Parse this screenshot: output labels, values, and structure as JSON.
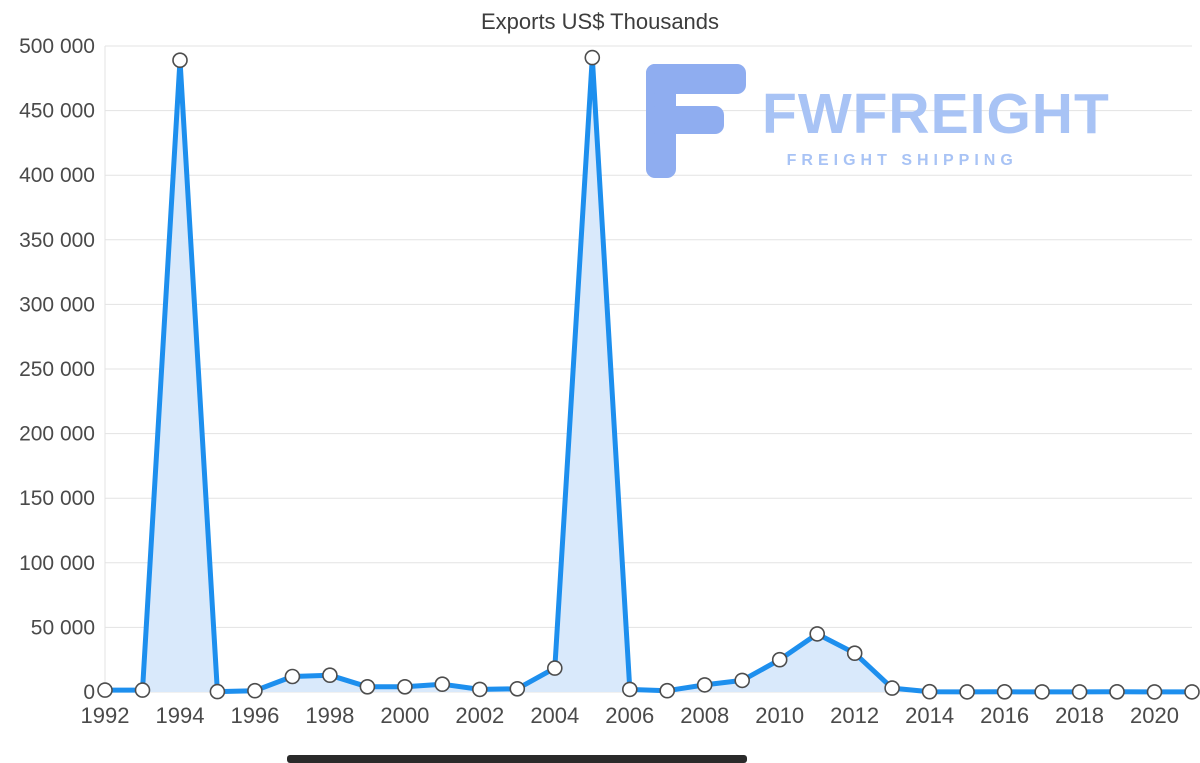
{
  "watermark": {
    "brand": "FWFREIGHT",
    "tagline": "FREIGHT SHIPPING",
    "text_color": "#a8c3f5",
    "logo_color": "#8fadf0"
  },
  "chart_data": {
    "type": "area",
    "title": "Exports US$ Thousands",
    "xlabel": "",
    "ylabel": "",
    "x": [
      1992,
      1993,
      1994,
      1995,
      1996,
      1997,
      1998,
      1999,
      2000,
      2001,
      2002,
      2003,
      2004,
      2005,
      2006,
      2007,
      2008,
      2009,
      2010,
      2011,
      2012,
      2013,
      2014,
      2015,
      2016,
      2017,
      2018,
      2019,
      2020,
      2021
    ],
    "values": [
      1500,
      1500,
      489000,
      300,
      1000,
      12000,
      13000,
      4000,
      4000,
      6000,
      2000,
      2500,
      18500,
      491000,
      2000,
      1000,
      5500,
      9000,
      25000,
      45000,
      30000,
      3000,
      200,
      100,
      150,
      100,
      100,
      150,
      100,
      100
    ],
    "ylim": [
      0,
      500000
    ],
    "grid": true,
    "legend": false,
    "y_ticks": [
      {
        "value": 0,
        "label": "0"
      },
      {
        "value": 50000,
        "label": "50 000"
      },
      {
        "value": 100000,
        "label": "100 000"
      },
      {
        "value": 150000,
        "label": "150 000"
      },
      {
        "value": 200000,
        "label": "200 000"
      },
      {
        "value": 250000,
        "label": "250 000"
      },
      {
        "value": 300000,
        "label": "300 000"
      },
      {
        "value": 350000,
        "label": "350 000"
      },
      {
        "value": 400000,
        "label": "400 000"
      },
      {
        "value": 450000,
        "label": "450 000"
      },
      {
        "value": 500000,
        "label": "500 000"
      }
    ],
    "x_ticks": [
      {
        "index": 0,
        "label": "1992"
      },
      {
        "index": 2,
        "label": "1994"
      },
      {
        "index": 4,
        "label": "1996"
      },
      {
        "index": 6,
        "label": "1998"
      },
      {
        "index": 8,
        "label": "2000"
      },
      {
        "index": 10,
        "label": "2002"
      },
      {
        "index": 12,
        "label": "2004"
      },
      {
        "index": 14,
        "label": "2006"
      },
      {
        "index": 16,
        "label": "2008"
      },
      {
        "index": 18,
        "label": "2010"
      },
      {
        "index": 20,
        "label": "2012"
      },
      {
        "index": 22,
        "label": "2014"
      },
      {
        "index": 24,
        "label": "2016"
      },
      {
        "index": 26,
        "label": "2018"
      },
      {
        "index": 28,
        "label": "2020"
      }
    ],
    "line_color": "#1d8fee",
    "fill_color": "#d9e9fb",
    "grid_color": "#e3e3e3",
    "axis_text_color": "#4a4a4a",
    "marker_fill": "#ffffff",
    "marker_stroke": "#4d4d4d"
  }
}
